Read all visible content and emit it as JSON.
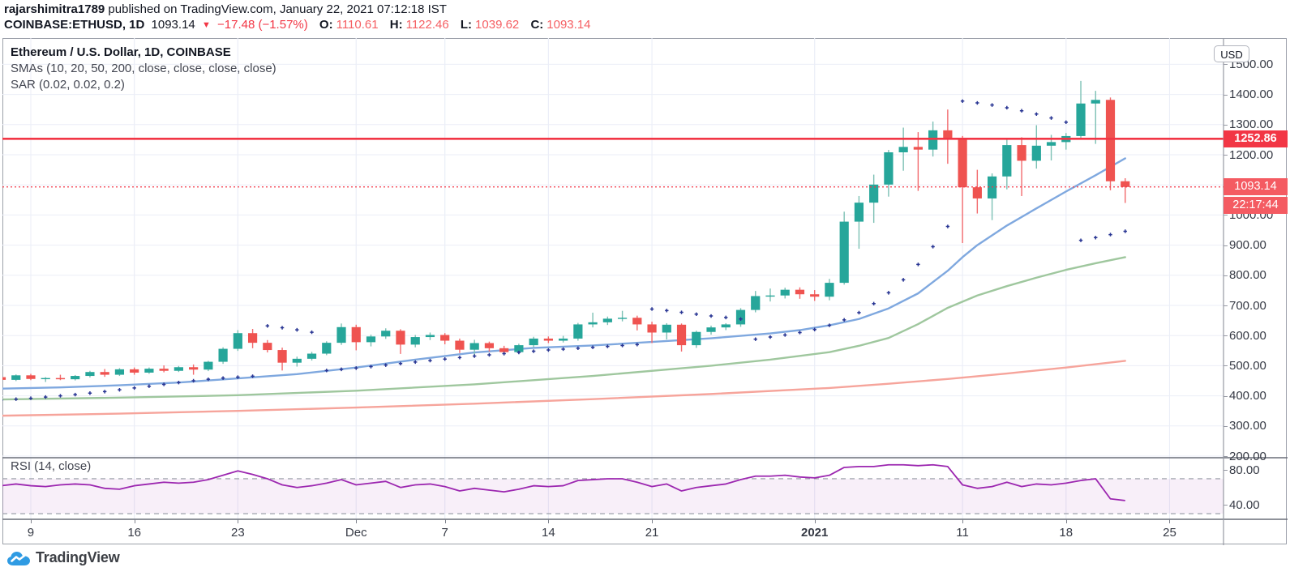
{
  "header": {
    "line1": {
      "user": "rajarshimitra1789",
      "rest": " published on TradingView.com, January 22, 2021 07:12:18 IST"
    },
    "quote": {
      "symbol": "COINBASE:ETHUSD, 1D",
      "last": "1093.14",
      "arrow": "▼",
      "change": "−17.48 (−1.57%)",
      "o_label": "O:",
      "o": "1110.61",
      "h_label": "H:",
      "h": "1122.46",
      "l_label": "L:",
      "l": "1039.62",
      "c_label": "C:",
      "c": "1093.14"
    }
  },
  "legend": {
    "title": "Ethereum / U.S. Dollar, 1D, COINBASE",
    "smas": "SMAs (10, 20, 50, 200, close, close, close, close)",
    "sar": "SAR (0.02, 0.02, 0.2)"
  },
  "rsi_label": "RSI (14, close)",
  "axis": {
    "currency": "USD"
  },
  "badges": {
    "level": "1252.86",
    "last": "1093.14",
    "countdown": "22:17:44"
  },
  "logo": {
    "text": "TradingView"
  },
  "colors": {
    "up": "#26a69a",
    "down": "#ef5350",
    "up_wick": "#7cc0b4",
    "down_wick": "#f26a6d",
    "sma_fast": "#7fa8df",
    "sma_mid": "#9fc79e",
    "sma_slow": "#f6a49b",
    "sar": "#283593",
    "level_line": "#f23645",
    "last_line": "#f23645",
    "rsi_line": "#9c27b0",
    "rsi_band": "rgba(162,49,177,0.08)",
    "rsi_dash": "#9598a2",
    "grid": "#ebeef7",
    "separator": "#6a6e79",
    "axis_border": "#9699a3"
  },
  "chart_data": {
    "type": "candlestick",
    "symbol": "ETHUSD",
    "exchange": "COINBASE",
    "interval": "1D",
    "x_start": "2020-11-07",
    "ylim": [
      200,
      1587
    ],
    "level_line": 1252.86,
    "last_price": 1093.14,
    "y_ticks": [
      1500,
      1400,
      1300,
      1200,
      1100,
      1000,
      900,
      800,
      700,
      600,
      500,
      400,
      300,
      200
    ],
    "rsi_ticks": [
      80,
      40
    ],
    "rsi_bands": [
      70,
      30
    ],
    "x_ticks": [
      {
        "l": "9",
        "i": 2
      },
      {
        "l": "16",
        "i": 9
      },
      {
        "l": "23",
        "i": 16
      },
      {
        "l": "Dec",
        "i": 24
      },
      {
        "l": "7",
        "i": 30
      },
      {
        "l": "14",
        "i": 37
      },
      {
        "l": "21",
        "i": 44
      },
      {
        "l": "2021",
        "i": 55,
        "b": true
      },
      {
        "l": "11",
        "i": 65
      },
      {
        "l": "18",
        "i": 72
      },
      {
        "l": "25",
        "i": 79
      }
    ],
    "candles": [
      [
        462,
        468,
        448,
        453
      ],
      [
        453,
        471,
        449,
        468
      ],
      [
        468,
        473,
        452,
        456
      ],
      [
        456,
        462,
        446,
        459
      ],
      [
        459,
        470,
        452,
        455
      ],
      [
        455,
        469,
        451,
        466
      ],
      [
        466,
        483,
        461,
        479
      ],
      [
        479,
        489,
        463,
        470
      ],
      [
        470,
        492,
        466,
        488
      ],
      [
        488,
        494,
        470,
        477
      ],
      [
        477,
        494,
        473,
        490
      ],
      [
        490,
        501,
        478,
        483
      ],
      [
        483,
        499,
        479,
        495
      ],
      [
        495,
        504,
        470,
        487
      ],
      [
        487,
        516,
        482,
        513
      ],
      [
        513,
        561,
        506,
        556
      ],
      [
        556,
        618,
        549,
        608
      ],
      [
        608,
        622,
        558,
        576
      ],
      [
        576,
        585,
        544,
        552
      ],
      [
        552,
        560,
        484,
        510
      ],
      [
        510,
        530,
        497,
        523
      ],
      [
        523,
        546,
        517,
        540
      ],
      [
        540,
        581,
        535,
        576
      ],
      [
        576,
        640,
        569,
        628
      ],
      [
        628,
        636,
        551,
        578
      ],
      [
        578,
        603,
        564,
        597
      ],
      [
        597,
        624,
        589,
        616
      ],
      [
        616,
        621,
        539,
        570
      ],
      [
        570,
        602,
        561,
        595
      ],
      [
        595,
        610,
        585,
        602
      ],
      [
        602,
        608,
        571,
        583
      ],
      [
        583,
        590,
        542,
        553
      ],
      [
        553,
        586,
        537,
        575
      ],
      [
        575,
        580,
        547,
        558
      ],
      [
        558,
        566,
        535,
        545
      ],
      [
        545,
        573,
        539,
        568
      ],
      [
        568,
        596,
        561,
        590
      ],
      [
        590,
        597,
        575,
        583
      ],
      [
        583,
        599,
        577,
        590
      ],
      [
        590,
        642,
        583,
        637
      ],
      [
        637,
        676,
        627,
        644
      ],
      [
        644,
        663,
        635,
        656
      ],
      [
        656,
        682,
        647,
        659
      ],
      [
        659,
        666,
        617,
        637
      ],
      [
        637,
        646,
        575,
        610
      ],
      [
        610,
        641,
        587,
        636
      ],
      [
        636,
        640,
        547,
        568
      ],
      [
        568,
        616,
        559,
        612
      ],
      [
        612,
        633,
        603,
        627
      ],
      [
        627,
        641,
        618,
        637
      ],
      [
        637,
        691,
        629,
        685
      ],
      [
        685,
        748,
        677,
        731
      ],
      [
        731,
        756,
        713,
        733
      ],
      [
        733,
        759,
        723,
        752
      ],
      [
        752,
        760,
        722,
        737
      ],
      [
        737,
        751,
        715,
        729
      ],
      [
        729,
        788,
        717,
        775
      ],
      [
        775,
        1011,
        769,
        978
      ],
      [
        978,
        1063,
        888,
        1041
      ],
      [
        1041,
        1134,
        974,
        1101
      ],
      [
        1101,
        1216,
        1061,
        1208
      ],
      [
        1208,
        1290,
        1147,
        1226
      ],
      [
        1226,
        1275,
        1080,
        1217
      ],
      [
        1217,
        1310,
        1194,
        1281
      ],
      [
        1281,
        1350,
        1170,
        1256
      ],
      [
        1256,
        1262,
        907,
        1092
      ],
      [
        1092,
        1150,
        1005,
        1055
      ],
      [
        1055,
        1138,
        983,
        1128
      ],
      [
        1128,
        1250,
        1085,
        1232
      ],
      [
        1232,
        1258,
        1063,
        1180
      ],
      [
        1180,
        1298,
        1154,
        1230
      ],
      [
        1230,
        1266,
        1181,
        1242
      ],
      [
        1242,
        1272,
        1217,
        1262
      ],
      [
        1262,
        1445,
        1254,
        1370
      ],
      [
        1370,
        1412,
        1236,
        1382
      ],
      [
        1382,
        1390,
        1082,
        1112
      ],
      [
        1112,
        1122,
        1040,
        1093
      ]
    ],
    "sma_fast_anchors": [
      [
        0,
        424
      ],
      [
        4,
        428
      ],
      [
        8,
        435
      ],
      [
        12,
        444
      ],
      [
        16,
        458
      ],
      [
        20,
        472
      ],
      [
        24,
        494
      ],
      [
        28,
        520
      ],
      [
        32,
        544
      ],
      [
        36,
        559
      ],
      [
        40,
        567
      ],
      [
        44,
        579
      ],
      [
        48,
        591
      ],
      [
        52,
        607
      ],
      [
        54,
        618
      ],
      [
        56,
        634
      ],
      [
        58,
        655
      ],
      [
        60,
        690
      ],
      [
        62,
        740
      ],
      [
        64,
        815
      ],
      [
        65,
        860
      ],
      [
        66,
        900
      ],
      [
        68,
        965
      ],
      [
        70,
        1022
      ],
      [
        72,
        1078
      ],
      [
        74,
        1132
      ],
      [
        75,
        1160
      ],
      [
        76,
        1188
      ]
    ],
    "sma_mid_anchors": [
      [
        0,
        388
      ],
      [
        8,
        394
      ],
      [
        16,
        402
      ],
      [
        24,
        417
      ],
      [
        32,
        438
      ],
      [
        40,
        466
      ],
      [
        48,
        500
      ],
      [
        52,
        520
      ],
      [
        56,
        545
      ],
      [
        58,
        566
      ],
      [
        60,
        592
      ],
      [
        62,
        638
      ],
      [
        64,
        692
      ],
      [
        66,
        733
      ],
      [
        68,
        764
      ],
      [
        70,
        792
      ],
      [
        72,
        818
      ],
      [
        74,
        840
      ],
      [
        76,
        860
      ]
    ],
    "sma_slow_anchors": [
      [
        0,
        334
      ],
      [
        8,
        341
      ],
      [
        16,
        350
      ],
      [
        24,
        361
      ],
      [
        32,
        374
      ],
      [
        40,
        389
      ],
      [
        48,
        406
      ],
      [
        56,
        426
      ],
      [
        60,
        440
      ],
      [
        64,
        456
      ],
      [
        68,
        474
      ],
      [
        72,
        494
      ],
      [
        76,
        516
      ]
    ],
    "sar": [
      [
        0,
        386
      ],
      [
        1,
        389
      ],
      [
        2,
        392
      ],
      [
        3,
        396
      ],
      [
        4,
        400
      ],
      [
        5,
        404
      ],
      [
        6,
        409
      ],
      [
        7,
        414
      ],
      [
        8,
        420
      ],
      [
        9,
        426
      ],
      [
        10,
        432
      ],
      [
        11,
        438
      ],
      [
        12,
        444
      ],
      [
        13,
        450
      ],
      [
        14,
        455
      ],
      [
        15,
        459
      ],
      [
        16,
        462
      ],
      [
        17,
        465
      ],
      [
        18,
        632
      ],
      [
        19,
        626
      ],
      [
        20,
        619
      ],
      [
        21,
        611
      ],
      [
        22,
        484
      ],
      [
        23,
        488
      ],
      [
        24,
        492
      ],
      [
        25,
        497
      ],
      [
        26,
        502
      ],
      [
        27,
        507
      ],
      [
        28,
        512
      ],
      [
        29,
        517
      ],
      [
        30,
        522
      ],
      [
        31,
        527
      ],
      [
        32,
        532
      ],
      [
        33,
        536
      ],
      [
        34,
        540
      ],
      [
        35,
        544
      ],
      [
        36,
        548
      ],
      [
        37,
        552
      ],
      [
        38,
        555
      ],
      [
        39,
        558
      ],
      [
        40,
        561
      ],
      [
        41,
        564
      ],
      [
        42,
        567
      ],
      [
        43,
        570
      ],
      [
        44,
        688
      ],
      [
        45,
        683
      ],
      [
        46,
        677
      ],
      [
        47,
        671
      ],
      [
        48,
        665
      ],
      [
        49,
        660
      ],
      [
        50,
        655
      ],
      [
        51,
        588
      ],
      [
        52,
        595
      ],
      [
        53,
        602
      ],
      [
        54,
        610
      ],
      [
        55,
        620
      ],
      [
        56,
        634
      ],
      [
        57,
        652
      ],
      [
        58,
        676
      ],
      [
        59,
        706
      ],
      [
        60,
        742
      ],
      [
        61,
        785
      ],
      [
        62,
        836
      ],
      [
        63,
        895
      ],
      [
        64,
        962
      ],
      [
        65,
        1378
      ],
      [
        66,
        1372
      ],
      [
        67,
        1365
      ],
      [
        68,
        1356
      ],
      [
        69,
        1346
      ],
      [
        70,
        1335
      ],
      [
        71,
        1322
      ],
      [
        72,
        1308
      ],
      [
        73,
        916
      ],
      [
        74,
        925
      ],
      [
        75,
        935
      ],
      [
        76,
        946
      ]
    ],
    "rsi": [
      62,
      64,
      62,
      61,
      63,
      64,
      63,
      59,
      58,
      62,
      64,
      66,
      65,
      66,
      69,
      74,
      79,
      75,
      70,
      63,
      60,
      62,
      65,
      69,
      63,
      65,
      67,
      60,
      63,
      64,
      61,
      56,
      59,
      57,
      55,
      58,
      62,
      61,
      62,
      68,
      69,
      70,
      70,
      66,
      61,
      64,
      56,
      60,
      62,
      64,
      69,
      73,
      73,
      74,
      72,
      71,
      74,
      83,
      84,
      84,
      86,
      86,
      85,
      86,
      84,
      63,
      59,
      61,
      66,
      61,
      64,
      63,
      65,
      68,
      70,
      47,
      45
    ]
  }
}
